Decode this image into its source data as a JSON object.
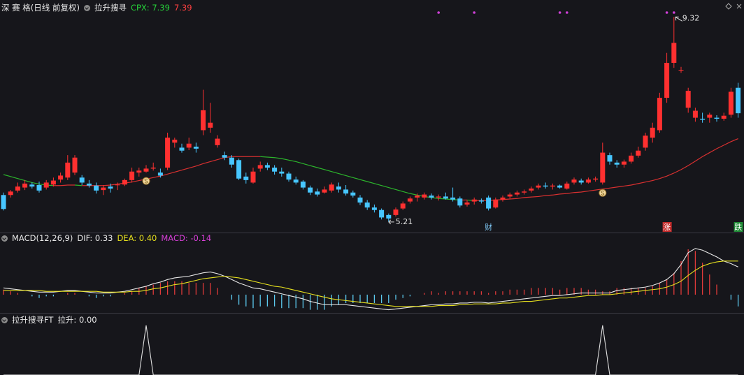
{
  "chart_data": [
    {
      "type": "candlestick",
      "title": "深 赛 格(日线 前复权)",
      "indicator": "拉升搜寻",
      "indicator_value": "CPX: 7.39",
      "indicator_color": "#26d43a",
      "price_color": "#ff4040",
      "up_color": "#ff3030",
      "down_color": "#47c6ff",
      "ylim": [
        5.04,
        9.66
      ],
      "candles": [
        [
          5.75,
          5.8,
          5.44,
          5.47
        ],
        [
          5.75,
          5.85,
          5.7,
          5.82
        ],
        [
          5.84,
          6.0,
          5.8,
          5.92
        ],
        [
          5.9,
          6.05,
          5.85,
          5.98
        ],
        [
          5.96,
          6.0,
          5.88,
          5.92
        ],
        [
          5.95,
          6.02,
          5.8,
          5.84
        ],
        [
          5.9,
          6.05,
          5.86,
          6.0
        ],
        [
          5.96,
          6.1,
          5.92,
          6.04
        ],
        [
          6.06,
          6.2,
          6.0,
          6.14
        ],
        [
          6.1,
          6.55,
          6.05,
          6.4
        ],
        [
          6.2,
          6.55,
          6.15,
          6.5
        ],
        [
          6.1,
          6.15,
          5.95,
          6.0
        ],
        [
          5.98,
          6.05,
          5.9,
          5.94
        ],
        [
          5.94,
          6.0,
          5.78,
          5.84
        ],
        [
          5.85,
          5.95,
          5.75,
          5.9
        ],
        [
          5.92,
          5.98,
          5.8,
          5.88
        ],
        [
          5.95,
          6.0,
          5.85,
          5.96
        ],
        [
          5.96,
          6.08,
          5.93,
          6.05
        ],
        [
          6.05,
          6.3,
          6.0,
          6.22
        ],
        [
          6.2,
          6.3,
          6.12,
          6.24
        ],
        [
          6.22,
          6.35,
          6.2,
          6.28
        ],
        [
          6.28,
          6.4,
          6.24,
          6.3
        ],
        [
          6.2,
          6.28,
          6.1,
          6.14
        ],
        [
          6.3,
          7.0,
          6.25,
          6.9
        ],
        [
          6.8,
          6.9,
          6.7,
          6.86
        ],
        [
          6.7,
          6.78,
          6.6,
          6.64
        ],
        [
          6.7,
          6.9,
          6.65,
          6.78
        ],
        [
          6.72,
          6.8,
          6.6,
          6.68
        ],
        [
          7.05,
          7.86,
          6.95,
          7.45
        ],
        [
          7.1,
          7.6,
          7.0,
          7.2
        ],
        [
          6.75,
          6.95,
          6.7,
          6.88
        ],
        [
          6.55,
          6.62,
          6.45,
          6.5
        ],
        [
          6.5,
          6.55,
          6.3,
          6.36
        ],
        [
          6.45,
          6.48,
          6.05,
          6.08
        ],
        [
          6.12,
          6.2,
          5.98,
          6.05
        ],
        [
          6.0,
          6.3,
          5.98,
          6.22
        ],
        [
          6.28,
          6.42,
          6.22,
          6.35
        ],
        [
          6.35,
          6.4,
          6.25,
          6.3
        ],
        [
          6.3,
          6.35,
          6.16,
          6.22
        ],
        [
          6.22,
          6.3,
          6.12,
          6.18
        ],
        [
          6.18,
          6.22,
          6.02,
          6.06
        ],
        [
          6.06,
          6.12,
          5.96,
          6.0
        ],
        [
          6.02,
          6.05,
          5.86,
          5.9
        ],
        [
          5.9,
          5.94,
          5.75,
          5.8
        ],
        [
          5.82,
          5.88,
          5.72,
          5.76
        ],
        [
          5.8,
          5.92,
          5.78,
          5.86
        ],
        [
          5.84,
          6.0,
          5.8,
          5.96
        ],
        [
          5.92,
          6.0,
          5.8,
          5.86
        ],
        [
          5.86,
          5.95,
          5.74,
          5.78
        ],
        [
          5.8,
          5.84,
          5.7,
          5.74
        ],
        [
          5.7,
          5.75,
          5.55,
          5.6
        ],
        [
          5.6,
          5.65,
          5.45,
          5.5
        ],
        [
          5.5,
          5.56,
          5.4,
          5.45
        ],
        [
          5.45,
          5.48,
          5.26,
          5.3
        ],
        [
          5.35,
          5.38,
          5.21,
          5.28
        ],
        [
          5.35,
          5.5,
          5.32,
          5.46
        ],
        [
          5.48,
          5.62,
          5.45,
          5.58
        ],
        [
          5.62,
          5.72,
          5.58,
          5.68
        ],
        [
          5.7,
          5.78,
          5.62,
          5.74
        ],
        [
          5.7,
          5.8,
          5.66,
          5.76
        ],
        [
          5.74,
          5.78,
          5.66,
          5.7
        ],
        [
          5.7,
          5.76,
          5.64,
          5.72
        ],
        [
          5.72,
          5.8,
          5.66,
          5.68
        ],
        [
          5.7,
          5.9,
          5.62,
          5.66
        ],
        [
          5.68,
          5.72,
          5.5,
          5.54
        ],
        [
          5.56,
          5.64,
          5.52,
          5.6
        ],
        [
          5.62,
          5.7,
          5.56,
          5.66
        ],
        [
          5.64,
          5.68,
          5.58,
          5.62
        ],
        [
          5.7,
          5.74,
          5.44,
          5.48
        ],
        [
          5.5,
          5.7,
          5.48,
          5.66
        ],
        [
          5.66,
          5.74,
          5.62,
          5.7
        ],
        [
          5.72,
          5.8,
          5.68,
          5.76
        ],
        [
          5.76,
          5.84,
          5.72,
          5.8
        ],
        [
          5.8,
          5.86,
          5.76,
          5.82
        ],
        [
          5.84,
          5.92,
          5.8,
          5.88
        ],
        [
          5.9,
          5.98,
          5.86,
          5.94
        ],
        [
          5.94,
          6.0,
          5.88,
          5.92
        ],
        [
          5.92,
          5.98,
          5.86,
          5.94
        ],
        [
          5.94,
          5.96,
          5.88,
          5.9
        ],
        [
          5.88,
          6.02,
          5.86,
          5.98
        ],
        [
          6.0,
          6.1,
          5.96,
          6.06
        ],
        [
          6.04,
          6.08,
          5.96,
          6.0
        ],
        [
          6.0,
          6.1,
          5.98,
          6.06
        ],
        [
          6.06,
          6.12,
          6.02,
          6.08
        ],
        [
          6.0,
          6.8,
          5.96,
          6.6
        ],
        [
          6.55,
          6.6,
          6.36,
          6.42
        ],
        [
          6.4,
          6.45,
          6.3,
          6.36
        ],
        [
          6.36,
          6.46,
          6.3,
          6.42
        ],
        [
          6.42,
          6.6,
          6.38,
          6.54
        ],
        [
          6.54,
          6.72,
          6.5,
          6.64
        ],
        [
          6.7,
          7.0,
          6.64,
          6.94
        ],
        [
          6.9,
          7.2,
          6.8,
          7.1
        ],
        [
          7.05,
          7.8,
          7.0,
          7.7
        ],
        [
          7.7,
          8.6,
          7.6,
          8.4
        ],
        [
          8.4,
          9.32,
          8.3,
          8.8
        ],
        [
          8.26,
          8.32,
          8.2,
          8.26
        ],
        [
          7.5,
          7.9,
          7.4,
          7.84
        ],
        [
          7.3,
          7.5,
          7.22,
          7.44
        ],
        [
          7.28,
          7.4,
          7.2,
          7.26
        ],
        [
          7.3,
          7.4,
          7.2,
          7.36
        ],
        [
          7.3,
          7.35,
          7.22,
          7.28
        ],
        [
          7.28,
          7.4,
          7.24,
          7.34
        ],
        [
          7.36,
          7.9,
          7.3,
          7.82
        ],
        [
          7.9,
          8.0,
          7.3,
          7.39
        ]
      ],
      "line": {
        "up_color": "#d83030",
        "down_color": "#2cb52c",
        "values": [
          6.16,
          6.12,
          6.08,
          6.04,
          6.0,
          5.97,
          5.95,
          5.94,
          5.94,
          5.95,
          5.95,
          5.94,
          5.94,
          5.94,
          5.94,
          5.95,
          5.97,
          5.99,
          6.01,
          6.04,
          6.07,
          6.1,
          6.13,
          6.17,
          6.21,
          6.25,
          6.29,
          6.33,
          6.38,
          6.42,
          6.46,
          6.5,
          6.52,
          6.52,
          6.52,
          6.52,
          6.52,
          6.51,
          6.5,
          6.48,
          6.45,
          6.42,
          6.38,
          6.34,
          6.3,
          6.26,
          6.22,
          6.18,
          6.14,
          6.1,
          6.06,
          6.02,
          5.98,
          5.94,
          5.9,
          5.86,
          5.82,
          5.78,
          5.75,
          5.72,
          5.7,
          5.68,
          5.67,
          5.66,
          5.65,
          5.65,
          5.64,
          5.64,
          5.64,
          5.65,
          5.66,
          5.67,
          5.68,
          5.7,
          5.71,
          5.72,
          5.74,
          5.75,
          5.77,
          5.78,
          5.8,
          5.81,
          5.83,
          5.85,
          5.87,
          5.89,
          5.91,
          5.93,
          5.95,
          5.98,
          6.01,
          6.04,
          6.08,
          6.13,
          6.19,
          6.26,
          6.34,
          6.43,
          6.52,
          6.6,
          6.68,
          6.75,
          6.82,
          6.88
        ]
      },
      "high_label": {
        "candle": 94
      },
      "low_label": {
        "candle": 54
      },
      "events": [
        {
          "x": 68,
          "label": "财",
          "color": "#7cc4f0",
          "boxed": false
        },
        {
          "x": 93,
          "label": "涨",
          "color": "#c22a2a",
          "boxed": true
        },
        {
          "x": 103,
          "label": "跌",
          "color": "#1f8a35",
          "boxed": true
        }
      ],
      "signals": [
        20,
        84
      ],
      "dots": [
        61,
        66,
        78,
        79,
        93,
        94
      ],
      "dot_color": "#d040d8"
    },
    {
      "type": "macd",
      "title": "MACD(12,26,9)",
      "ylim": [
        -0.2,
        0.64
      ],
      "series": [
        {
          "label": "DIF: 0.33",
          "color": "#e8e8e8",
          "values": [
            0.08,
            0.07,
            0.06,
            0.05,
            0.04,
            0.03,
            0.03,
            0.03,
            0.04,
            0.05,
            0.05,
            0.04,
            0.03,
            0.02,
            0.02,
            0.02,
            0.03,
            0.04,
            0.06,
            0.08,
            0.1,
            0.13,
            0.15,
            0.18,
            0.2,
            0.21,
            0.22,
            0.24,
            0.26,
            0.27,
            0.25,
            0.22,
            0.18,
            0.14,
            0.11,
            0.08,
            0.07,
            0.05,
            0.03,
            0.01,
            -0.01,
            -0.03,
            -0.05,
            -0.08,
            -0.1,
            -0.12,
            -0.12,
            -0.12,
            -0.12,
            -0.13,
            -0.14,
            -0.15,
            -0.16,
            -0.17,
            -0.18,
            -0.17,
            -0.16,
            -0.15,
            -0.14,
            -0.13,
            -0.12,
            -0.12,
            -0.11,
            -0.11,
            -0.1,
            -0.1,
            -0.09,
            -0.09,
            -0.1,
            -0.09,
            -0.08,
            -0.07,
            -0.06,
            -0.05,
            -0.04,
            -0.03,
            -0.02,
            -0.01,
            -0.01,
            0.0,
            0.01,
            0.02,
            0.02,
            0.02,
            0.02,
            0.02,
            0.05,
            0.06,
            0.07,
            0.08,
            0.09,
            0.11,
            0.14,
            0.18,
            0.25,
            0.36,
            0.5,
            0.55,
            0.53,
            0.49,
            0.45,
            0.4,
            0.37,
            0.33
          ]
        },
        {
          "label": "DEA: 0.40",
          "color": "#e6e01e",
          "values": [
            0.05,
            0.05,
            0.05,
            0.05,
            0.05,
            0.05,
            0.04,
            0.04,
            0.04,
            0.04,
            0.04,
            0.04,
            0.04,
            0.04,
            0.03,
            0.03,
            0.03,
            0.03,
            0.04,
            0.04,
            0.05,
            0.07,
            0.08,
            0.1,
            0.12,
            0.13,
            0.15,
            0.17,
            0.19,
            0.2,
            0.21,
            0.22,
            0.21,
            0.2,
            0.18,
            0.16,
            0.14,
            0.12,
            0.1,
            0.09,
            0.07,
            0.05,
            0.03,
            0.01,
            -0.01,
            -0.03,
            -0.05,
            -0.06,
            -0.07,
            -0.08,
            -0.09,
            -0.1,
            -0.11,
            -0.12,
            -0.13,
            -0.14,
            -0.14,
            -0.14,
            -0.14,
            -0.14,
            -0.14,
            -0.13,
            -0.13,
            -0.13,
            -0.12,
            -0.12,
            -0.11,
            -0.11,
            -0.11,
            -0.11,
            -0.1,
            -0.1,
            -0.09,
            -0.08,
            -0.08,
            -0.07,
            -0.06,
            -0.05,
            -0.04,
            -0.04,
            -0.03,
            -0.02,
            -0.01,
            -0.01,
            0.0,
            0.0,
            0.01,
            0.02,
            0.03,
            0.04,
            0.05,
            0.06,
            0.07,
            0.09,
            0.12,
            0.16,
            0.23,
            0.29,
            0.34,
            0.37,
            0.39,
            0.4,
            0.4,
            0.4
          ]
        },
        {
          "label": "MACD: -0.14",
          "color": "#d940d9",
          "type": "bar",
          "up_color": "#e03a3a",
          "down_color": "#5ccaee",
          "values": [
            0.06,
            0.04,
            0.02,
            0.0,
            -0.02,
            -0.04,
            -0.02,
            -0.02,
            0.0,
            0.02,
            0.02,
            0.0,
            -0.02,
            -0.04,
            -0.02,
            -0.02,
            0.0,
            0.02,
            0.04,
            0.08,
            0.1,
            0.12,
            0.14,
            0.16,
            0.16,
            0.16,
            0.14,
            0.14,
            0.14,
            0.14,
            0.08,
            0.0,
            -0.06,
            -0.12,
            -0.14,
            -0.16,
            -0.14,
            -0.14,
            -0.14,
            -0.16,
            -0.16,
            -0.16,
            -0.16,
            -0.18,
            -0.18,
            -0.18,
            -0.14,
            -0.12,
            -0.1,
            -0.1,
            -0.1,
            -0.1,
            -0.1,
            -0.1,
            -0.1,
            -0.06,
            -0.04,
            -0.02,
            0.0,
            0.02,
            0.04,
            0.02,
            0.04,
            0.04,
            0.04,
            0.04,
            0.04,
            0.04,
            0.02,
            0.04,
            0.04,
            0.06,
            0.06,
            0.06,
            0.08,
            0.08,
            0.08,
            0.08,
            0.06,
            0.08,
            0.08,
            0.08,
            0.06,
            0.06,
            0.04,
            0.04,
            0.08,
            0.08,
            0.08,
            0.08,
            0.08,
            0.1,
            0.14,
            0.18,
            0.26,
            0.4,
            0.54,
            0.52,
            0.38,
            0.24,
            0.12,
            0.0,
            -0.06,
            -0.14
          ]
        }
      ]
    },
    {
      "type": "line",
      "title": "拉升搜寻FT",
      "label": "拉升: 0.00",
      "color": "#e0e0e0",
      "ylim": [
        0,
        1
      ],
      "values": [
        0,
        0,
        0,
        0,
        0,
        0,
        0,
        0,
        0,
        0,
        0,
        0,
        0,
        0,
        0,
        0,
        0,
        0,
        0,
        0,
        1,
        0,
        0,
        0,
        0,
        0,
        0,
        0,
        0,
        0,
        0,
        0,
        0,
        0,
        0,
        0,
        0,
        0,
        0,
        0,
        0,
        0,
        0,
        0,
        0,
        0,
        0,
        0,
        0,
        0,
        0,
        0,
        0,
        0,
        0,
        0,
        0,
        0,
        0,
        0,
        0,
        0,
        0,
        0,
        0,
        0,
        0,
        0,
        0,
        0,
        0,
        0,
        0,
        0,
        0,
        0,
        0,
        0,
        0,
        0,
        0,
        0,
        0,
        0,
        1,
        0,
        0,
        0,
        0,
        0,
        0,
        0,
        0,
        0,
        0,
        0,
        0,
        0,
        0,
        0,
        0,
        0,
        0,
        0
      ]
    }
  ]
}
